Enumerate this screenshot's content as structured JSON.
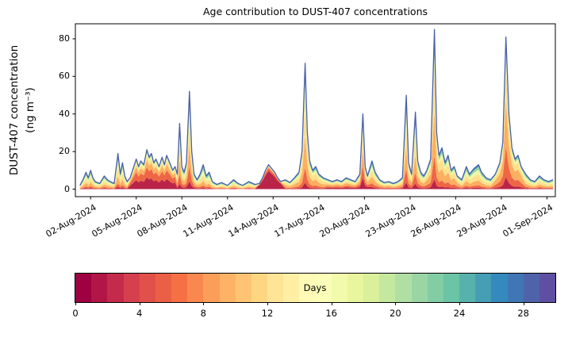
{
  "figure": {
    "title": "Age contribution to DUST-407 concentrations",
    "ylabel_line1": "DUST-407 concentration",
    "ylabel_line2": "(ng m⁻³)",
    "background": "#ffffff"
  },
  "chart_data": {
    "type": "area",
    "stacked": true,
    "title": "Age contribution to DUST-407 concentrations",
    "xlabel": "",
    "ylabel": "DUST-407 concentration (ng m⁻³)",
    "x_unit": "day of August 2024 (32 = 01-Sep-2024)",
    "xlim": [
      1.0,
      32.55
    ],
    "ylim": [
      -4,
      88
    ],
    "yticks": [
      0,
      20,
      40,
      60,
      80
    ],
    "xticks": [
      {
        "day": 2,
        "label": "02-Aug-2024"
      },
      {
        "day": 5,
        "label": "05-Aug-2024"
      },
      {
        "day": 8,
        "label": "08-Aug-2024"
      },
      {
        "day": 11,
        "label": "11-Aug-2024"
      },
      {
        "day": 14,
        "label": "14-Aug-2024"
      },
      {
        "day": 17,
        "label": "17-Aug-2024"
      },
      {
        "day": 20,
        "label": "20-Aug-2024"
      },
      {
        "day": 23,
        "label": "23-Aug-2024"
      },
      {
        "day": 26,
        "label": "26-Aug-2024"
      },
      {
        "day": 29,
        "label": "29-Aug-2024"
      },
      {
        "day": 32,
        "label": "01-Sep-2024"
      }
    ],
    "grid": false,
    "legend": "colorbar (age in days, Spectral colormap: red = young, blue = old)",
    "outline_color": "#4a5fa8",
    "age_bins": [
      {
        "label": "0-4 days",
        "color": "#b92448"
      },
      {
        "label": "4-8 days",
        "color": "#ef6645"
      },
      {
        "label": "8-12 days",
        "color": "#fdae61"
      },
      {
        "label": "12-16 days",
        "color": "#fee08b"
      },
      {
        "label": "16-20 days",
        "color": "#eef8a8"
      },
      {
        "label": "20-24 days",
        "color": "#8fd2a4"
      },
      {
        "label": "24-28+ days",
        "color": "#4191bb"
      }
    ],
    "series_note": "stacked series value for bin b at point i = total[i] * fractions[b] of the age_mix_segment containing x[i]; bins stack bottom(young)-to-top(old)",
    "x": [
      1.3,
      1.5,
      1.7,
      1.85,
      2.0,
      2.15,
      2.3,
      2.6,
      2.9,
      3.1,
      3.3,
      3.55,
      3.8,
      3.95,
      4.1,
      4.25,
      4.4,
      4.6,
      4.8,
      5.0,
      5.15,
      5.3,
      5.5,
      5.7,
      5.85,
      6.0,
      6.15,
      6.3,
      6.5,
      6.7,
      6.85,
      7.0,
      7.2,
      7.4,
      7.55,
      7.7,
      7.85,
      8.0,
      8.15,
      8.3,
      8.5,
      8.65,
      8.8,
      9.0,
      9.2,
      9.4,
      9.6,
      9.8,
      10.0,
      10.3,
      10.6,
      11.0,
      11.4,
      11.7,
      12.0,
      12.4,
      12.8,
      13.1,
      13.3,
      13.5,
      13.7,
      13.9,
      14.1,
      14.3,
      14.5,
      14.8,
      15.1,
      15.4,
      15.7,
      15.9,
      16.1,
      16.25,
      16.4,
      16.6,
      16.8,
      17.0,
      17.3,
      17.6,
      17.9,
      18.2,
      18.5,
      18.8,
      19.1,
      19.4,
      19.7,
      19.9,
      20.05,
      20.2,
      20.5,
      20.7,
      21.0,
      21.3,
      21.6,
      21.9,
      22.2,
      22.5,
      22.75,
      22.9,
      23.1,
      23.35,
      23.5,
      23.7,
      23.9,
      24.1,
      24.35,
      24.6,
      24.75,
      24.9,
      25.1,
      25.3,
      25.5,
      25.7,
      25.9,
      26.1,
      26.4,
      26.7,
      26.9,
      27.2,
      27.5,
      27.7,
      28.0,
      28.3,
      28.6,
      28.9,
      29.1,
      29.3,
      29.5,
      29.7,
      29.9,
      30.1,
      30.3,
      30.6,
      30.9,
      31.2,
      31.5,
      31.8,
      32.1,
      32.4
    ],
    "total": [
      2,
      5,
      9,
      6,
      10,
      6,
      4,
      3,
      7,
      5,
      4,
      3,
      19,
      8,
      14,
      7,
      4,
      6,
      11,
      16,
      12,
      15,
      13,
      21,
      17,
      19,
      14,
      16,
      12,
      17,
      13,
      18,
      14,
      10,
      12,
      8,
      35,
      12,
      9,
      14,
      52,
      20,
      8,
      5,
      8,
      13,
      7,
      9,
      4,
      2.5,
      3.5,
      2,
      5,
      3,
      2,
      4,
      2.5,
      3,
      6,
      10,
      13,
      11,
      9,
      6,
      4,
      5,
      3.5,
      6,
      9,
      20,
      67,
      30,
      15,
      10,
      12,
      8,
      6,
      5,
      4,
      5,
      4,
      6,
      5,
      4,
      8,
      40,
      12,
      7,
      15,
      9,
      5,
      3.5,
      4,
      3,
      4,
      6,
      50,
      14,
      8,
      41,
      15,
      9,
      7,
      10,
      16,
      85,
      30,
      18,
      22,
      14,
      18,
      10,
      12,
      7,
      5,
      12,
      8,
      11,
      13,
      9,
      6,
      5,
      8,
      14,
      25,
      81,
      40,
      22,
      16,
      18,
      12,
      8,
      5,
      4,
      7,
      5,
      4,
      5
    ],
    "age_mix_segments": [
      {
        "start": 1.0,
        "end": 4.5,
        "fractions": [
          0.06,
          0.1,
          0.2,
          0.25,
          0.19,
          0.12,
          0.08
        ]
      },
      {
        "start": 4.5,
        "end": 7.6,
        "fractions": [
          0.3,
          0.26,
          0.18,
          0.11,
          0.08,
          0.04,
          0.03
        ]
      },
      {
        "start": 7.6,
        "end": 9.1,
        "fractions": [
          0.08,
          0.15,
          0.22,
          0.22,
          0.15,
          0.1,
          0.08
        ]
      },
      {
        "start": 9.1,
        "end": 13.0,
        "fractions": [
          0.05,
          0.1,
          0.18,
          0.25,
          0.2,
          0.12,
          0.1
        ]
      },
      {
        "start": 13.0,
        "end": 14.6,
        "fractions": [
          0.74,
          0.12,
          0.05,
          0.03,
          0.02,
          0.02,
          0.02
        ]
      },
      {
        "start": 14.6,
        "end": 17.6,
        "fractions": [
          0.05,
          0.12,
          0.26,
          0.27,
          0.15,
          0.08,
          0.07
        ]
      },
      {
        "start": 17.6,
        "end": 20.3,
        "fractions": [
          0.15,
          0.16,
          0.22,
          0.2,
          0.12,
          0.08,
          0.07
        ]
      },
      {
        "start": 20.3,
        "end": 24.0,
        "fractions": [
          0.07,
          0.14,
          0.23,
          0.23,
          0.15,
          0.1,
          0.08
        ]
      },
      {
        "start": 24.0,
        "end": 26.2,
        "fractions": [
          0.06,
          0.15,
          0.28,
          0.25,
          0.12,
          0.08,
          0.06
        ]
      },
      {
        "start": 26.2,
        "end": 28.5,
        "fractions": [
          0.06,
          0.1,
          0.2,
          0.25,
          0.19,
          0.12,
          0.08
        ]
      },
      {
        "start": 28.5,
        "end": 30.6,
        "fractions": [
          0.08,
          0.2,
          0.3,
          0.22,
          0.1,
          0.06,
          0.04
        ]
      },
      {
        "start": 30.6,
        "end": 32.6,
        "fractions": [
          0.06,
          0.1,
          0.2,
          0.25,
          0.19,
          0.12,
          0.08
        ]
      }
    ]
  },
  "colorbar": {
    "label": "Days",
    "min": 0,
    "max": 30,
    "ticks": [
      0,
      4,
      8,
      12,
      16,
      20,
      24,
      28
    ],
    "colors": [
      "#9e0142",
      "#b11646",
      "#c42b4b",
      "#d6404e",
      "#e1504a",
      "#eb5f46",
      "#f57145",
      "#f8884f",
      "#fb9e5a",
      "#fdb365",
      "#fec474",
      "#fed682",
      "#fee496",
      "#feefa4",
      "#fffab6",
      "#fbfdb8",
      "#f2faab",
      "#e9f69d",
      "#daf09a",
      "#c5e89f",
      "#b1dfa3",
      "#9ad6a4",
      "#83cda5",
      "#6bc4a5",
      "#58b2ac",
      "#469eb4",
      "#348abc",
      "#4076b5",
      "#4f63ab",
      "#5e4fa2"
    ]
  }
}
